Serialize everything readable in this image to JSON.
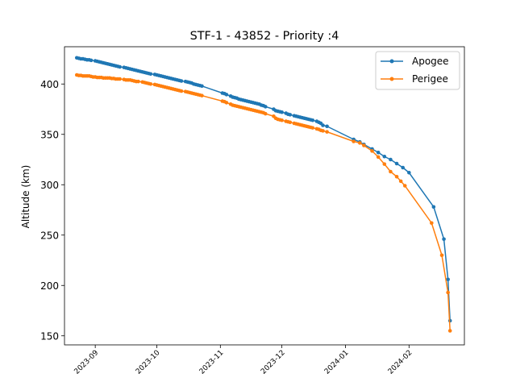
{
  "chart_data": {
    "type": "line",
    "title": "STF-1 - 43852 - Priority :4",
    "xlabel": "",
    "ylabel": "Altitude (km)",
    "x_axis_type": "date",
    "xlim": [
      "2023-08-17",
      "2024-02-28"
    ],
    "ylim": [
      141,
      437
    ],
    "yticks": [
      150,
      200,
      250,
      300,
      350,
      400
    ],
    "xticks": [
      {
        "date": "2023-09-01",
        "label": "2023-09"
      },
      {
        "date": "2023-10-01",
        "label": "2023-10"
      },
      {
        "date": "2023-11-01",
        "label": "2023-11"
      },
      {
        "date": "2023-12-01",
        "label": "2023-12"
      },
      {
        "date": "2024-01-01",
        "label": "2024-01"
      },
      {
        "date": "2024-02-01",
        "label": "2024-02"
      }
    ],
    "grid": false,
    "legend_position": "top-right",
    "series": [
      {
        "name": "Apogee",
        "color": "#1f77b4",
        "points": [
          [
            "2023-08-23",
            426
          ],
          [
            "2023-08-24",
            425.5
          ],
          [
            "2023-08-25",
            425
          ],
          [
            "2023-08-26",
            425
          ],
          [
            "2023-08-27",
            424.5
          ],
          [
            "2023-08-28",
            424
          ],
          [
            "2023-08-29",
            424
          ],
          [
            "2023-08-30",
            423.5
          ],
          [
            "2023-09-01",
            423
          ],
          [
            "2023-09-02",
            422.5
          ],
          [
            "2023-09-03",
            422
          ],
          [
            "2023-09-04",
            421.5
          ],
          [
            "2023-09-05",
            421
          ],
          [
            "2023-09-06",
            420.5
          ],
          [
            "2023-09-07",
            420
          ],
          [
            "2023-09-08",
            419.5
          ],
          [
            "2023-09-09",
            419
          ],
          [
            "2023-09-10",
            418.5
          ],
          [
            "2023-09-11",
            418
          ],
          [
            "2023-09-12",
            417.5
          ],
          [
            "2023-09-13",
            417
          ],
          [
            "2023-09-15",
            416.5
          ],
          [
            "2023-09-16",
            416
          ],
          [
            "2023-09-17",
            415.5
          ],
          [
            "2023-09-18",
            415
          ],
          [
            "2023-09-19",
            414.5
          ],
          [
            "2023-09-20",
            414
          ],
          [
            "2023-09-21",
            413.5
          ],
          [
            "2023-09-22",
            413
          ],
          [
            "2023-09-23",
            412.5
          ],
          [
            "2023-09-24",
            412
          ],
          [
            "2023-09-25",
            411.5
          ],
          [
            "2023-09-26",
            411
          ],
          [
            "2023-09-27",
            410.5
          ],
          [
            "2023-09-28",
            410
          ],
          [
            "2023-09-30",
            409.5
          ],
          [
            "2023-10-01",
            409
          ],
          [
            "2023-10-02",
            408.5
          ],
          [
            "2023-10-03",
            408
          ],
          [
            "2023-10-04",
            407.5
          ],
          [
            "2023-10-05",
            407
          ],
          [
            "2023-10-06",
            406.5
          ],
          [
            "2023-10-07",
            406
          ],
          [
            "2023-10-08",
            405.5
          ],
          [
            "2023-10-09",
            405
          ],
          [
            "2023-10-10",
            404.5
          ],
          [
            "2023-10-11",
            404
          ],
          [
            "2023-10-12",
            403.5
          ],
          [
            "2023-10-13",
            403
          ],
          [
            "2023-10-15",
            402.5
          ],
          [
            "2023-10-16",
            402
          ],
          [
            "2023-10-17",
            401.5
          ],
          [
            "2023-10-18",
            401
          ],
          [
            "2023-10-19",
            400
          ],
          [
            "2023-10-20",
            399.5
          ],
          [
            "2023-10-21",
            399
          ],
          [
            "2023-10-22",
            398.5
          ],
          [
            "2023-10-23",
            398
          ],
          [
            "2023-11-02",
            391
          ],
          [
            "2023-11-03",
            390.5
          ],
          [
            "2023-11-04",
            389.5
          ],
          [
            "2023-11-06",
            388
          ],
          [
            "2023-11-07",
            387
          ],
          [
            "2023-11-08",
            386.5
          ],
          [
            "2023-11-09",
            386
          ],
          [
            "2023-11-10",
            385
          ],
          [
            "2023-11-11",
            384.5
          ],
          [
            "2023-11-12",
            384
          ],
          [
            "2023-11-13",
            383.5
          ],
          [
            "2023-11-14",
            383
          ],
          [
            "2023-11-15",
            382.5
          ],
          [
            "2023-11-16",
            382
          ],
          [
            "2023-11-17",
            381.5
          ],
          [
            "2023-11-18",
            381
          ],
          [
            "2023-11-19",
            380.5
          ],
          [
            "2023-11-20",
            380
          ],
          [
            "2023-11-21",
            379
          ],
          [
            "2023-11-22",
            378.5
          ],
          [
            "2023-11-23",
            377.5
          ],
          [
            "2023-11-27",
            375
          ],
          [
            "2023-11-28",
            373.5
          ],
          [
            "2023-11-29",
            373
          ],
          [
            "2023-11-30",
            372.5
          ],
          [
            "2023-12-01",
            372
          ],
          [
            "2023-12-03",
            371
          ],
          [
            "2023-12-04",
            370
          ],
          [
            "2023-12-05",
            369.5
          ],
          [
            "2023-12-07",
            368.5
          ],
          [
            "2023-12-08",
            368
          ],
          [
            "2023-12-09",
            367.5
          ],
          [
            "2023-12-10",
            367
          ],
          [
            "2023-12-11",
            366.5
          ],
          [
            "2023-12-12",
            366
          ],
          [
            "2023-12-13",
            365.5
          ],
          [
            "2023-12-14",
            365
          ],
          [
            "2023-12-15",
            364.5
          ],
          [
            "2023-12-16",
            364
          ],
          [
            "2023-12-18",
            363
          ],
          [
            "2023-12-19",
            362
          ],
          [
            "2023-12-20",
            361
          ],
          [
            "2023-12-21",
            359
          ],
          [
            "2023-12-23",
            358
          ],
          [
            "2024-01-05",
            345
          ],
          [
            "2024-01-08",
            342.5
          ],
          [
            "2024-01-10",
            340
          ],
          [
            "2024-01-14",
            335.5
          ],
          [
            "2024-01-17",
            332
          ],
          [
            "2024-01-20",
            328
          ],
          [
            "2024-01-23",
            325
          ],
          [
            "2024-01-26",
            321
          ],
          [
            "2024-01-29",
            317
          ],
          [
            "2024-02-01",
            312
          ],
          [
            "2024-02-13",
            278
          ],
          [
            "2024-02-18",
            246
          ],
          [
            "2024-02-20",
            206
          ],
          [
            "2024-02-21",
            165
          ]
        ]
      },
      {
        "name": "Perigee",
        "color": "#ff7f0e",
        "points": [
          [
            "2023-08-23",
            409
          ],
          [
            "2023-08-24",
            408.5
          ],
          [
            "2023-08-25",
            408.5
          ],
          [
            "2023-08-26",
            408
          ],
          [
            "2023-08-27",
            408
          ],
          [
            "2023-08-28",
            408
          ],
          [
            "2023-08-29",
            408
          ],
          [
            "2023-08-30",
            407.5
          ],
          [
            "2023-08-31",
            407
          ],
          [
            "2023-09-01",
            407
          ],
          [
            "2023-09-02",
            406.5
          ],
          [
            "2023-09-03",
            406.5
          ],
          [
            "2023-09-04",
            406.5
          ],
          [
            "2023-09-05",
            406
          ],
          [
            "2023-09-06",
            406
          ],
          [
            "2023-09-07",
            406
          ],
          [
            "2023-09-08",
            406
          ],
          [
            "2023-09-09",
            405.5
          ],
          [
            "2023-09-10",
            405.5
          ],
          [
            "2023-09-11",
            405
          ],
          [
            "2023-09-12",
            405
          ],
          [
            "2023-09-13",
            405
          ],
          [
            "2023-09-15",
            404.5
          ],
          [
            "2023-09-16",
            404
          ],
          [
            "2023-09-17",
            404
          ],
          [
            "2023-09-18",
            404
          ],
          [
            "2023-09-19",
            403.5
          ],
          [
            "2023-09-20",
            403
          ],
          [
            "2023-09-21",
            402.5
          ],
          [
            "2023-09-22",
            402.5
          ],
          [
            "2023-09-24",
            402
          ],
          [
            "2023-09-25",
            401.5
          ],
          [
            "2023-09-26",
            401
          ],
          [
            "2023-09-27",
            400.5
          ],
          [
            "2023-09-28",
            400
          ],
          [
            "2023-09-30",
            399.5
          ],
          [
            "2023-10-01",
            399
          ],
          [
            "2023-10-02",
            398.5
          ],
          [
            "2023-10-03",
            398
          ],
          [
            "2023-10-04",
            397.5
          ],
          [
            "2023-10-05",
            397
          ],
          [
            "2023-10-06",
            396.5
          ],
          [
            "2023-10-07",
            396
          ],
          [
            "2023-10-08",
            395.5
          ],
          [
            "2023-10-09",
            395
          ],
          [
            "2023-10-10",
            394.5
          ],
          [
            "2023-10-11",
            394
          ],
          [
            "2023-10-12",
            393.5
          ],
          [
            "2023-10-13",
            393
          ],
          [
            "2023-10-15",
            392.5
          ],
          [
            "2023-10-16",
            392
          ],
          [
            "2023-10-17",
            391.5
          ],
          [
            "2023-10-18",
            391
          ],
          [
            "2023-10-19",
            390.5
          ],
          [
            "2023-10-20",
            390
          ],
          [
            "2023-10-21",
            389.5
          ],
          [
            "2023-10-22",
            389
          ],
          [
            "2023-10-23",
            388.5
          ],
          [
            "2023-11-02",
            383
          ],
          [
            "2023-11-03",
            382.5
          ],
          [
            "2023-11-04",
            381.5
          ],
          [
            "2023-11-06",
            380
          ],
          [
            "2023-11-07",
            379
          ],
          [
            "2023-11-08",
            378.5
          ],
          [
            "2023-11-09",
            378
          ],
          [
            "2023-11-10",
            377.5
          ],
          [
            "2023-11-11",
            377
          ],
          [
            "2023-11-12",
            376.5
          ],
          [
            "2023-11-13",
            376
          ],
          [
            "2023-11-14",
            375.5
          ],
          [
            "2023-11-15",
            375
          ],
          [
            "2023-11-16",
            374.5
          ],
          [
            "2023-11-17",
            374
          ],
          [
            "2023-11-18",
            373.5
          ],
          [
            "2023-11-19",
            373
          ],
          [
            "2023-11-20",
            372.5
          ],
          [
            "2023-11-21",
            372
          ],
          [
            "2023-11-22",
            371.5
          ],
          [
            "2023-11-23",
            370.5
          ],
          [
            "2023-11-27",
            368
          ],
          [
            "2023-11-28",
            366
          ],
          [
            "2023-11-29",
            365
          ],
          [
            "2023-11-30",
            364.5
          ],
          [
            "2023-12-01",
            364
          ],
          [
            "2023-12-03",
            363
          ],
          [
            "2023-12-04",
            362.5
          ],
          [
            "2023-12-05",
            362
          ],
          [
            "2023-12-07",
            361
          ],
          [
            "2023-12-08",
            360.5
          ],
          [
            "2023-12-09",
            360
          ],
          [
            "2023-12-10",
            359.5
          ],
          [
            "2023-12-11",
            359
          ],
          [
            "2023-12-12",
            358.5
          ],
          [
            "2023-12-13",
            358
          ],
          [
            "2023-12-14",
            357.5
          ],
          [
            "2023-12-15",
            357
          ],
          [
            "2023-12-16",
            356.5
          ],
          [
            "2023-12-18",
            355.5
          ],
          [
            "2023-12-19",
            355
          ],
          [
            "2023-12-20",
            354
          ],
          [
            "2023-12-21",
            353.5
          ],
          [
            "2023-12-23",
            352.5
          ],
          [
            "2024-01-05",
            343
          ],
          [
            "2024-01-08",
            341.5
          ],
          [
            "2024-01-10",
            339
          ],
          [
            "2024-01-14",
            333.5
          ],
          [
            "2024-01-17",
            327.5
          ],
          [
            "2024-01-20",
            320.5
          ],
          [
            "2024-01-23",
            313
          ],
          [
            "2024-01-26",
            308
          ],
          [
            "2024-01-28",
            303.5
          ],
          [
            "2024-01-30",
            299
          ],
          [
            "2024-02-12",
            262
          ],
          [
            "2024-02-17",
            230
          ],
          [
            "2024-02-20",
            193
          ],
          [
            "2024-02-21",
            155
          ]
        ]
      }
    ]
  }
}
